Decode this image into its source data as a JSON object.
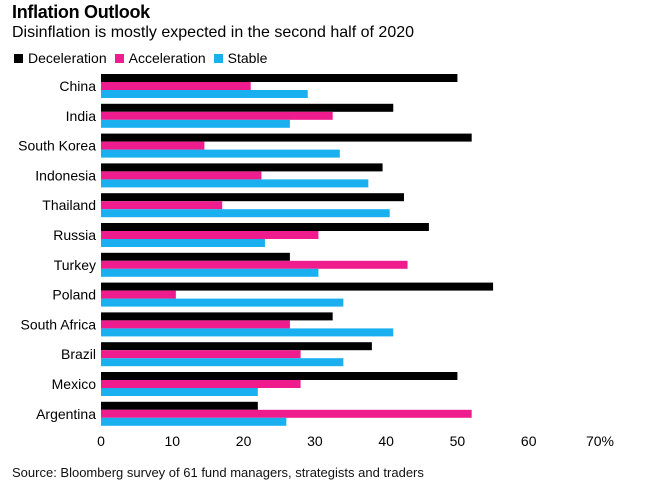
{
  "chart_data": {
    "type": "bar",
    "orientation": "horizontal",
    "title": "Inflation Outlook",
    "subtitle": "Disinflation is mostly expected in the second half of 2020",
    "categories": [
      "China",
      "India",
      "South Korea",
      "Indonesia",
      "Thailand",
      "Russia",
      "Turkey",
      "Poland",
      "South Africa",
      "Brazil",
      "Mexico",
      "Argentina"
    ],
    "series": [
      {
        "name": "Deceleration",
        "color": "#000000",
        "values": [
          50,
          41,
          52,
          39.5,
          42.5,
          46,
          26.5,
          55,
          32.5,
          38,
          50,
          22
        ]
      },
      {
        "name": "Acceleration",
        "color": "#ee1c8c",
        "values": [
          21,
          32.5,
          14.5,
          22.5,
          17,
          30.5,
          43,
          10.5,
          26.5,
          28,
          28,
          52
        ]
      },
      {
        "name": "Stable",
        "color": "#1ab0f0",
        "values": [
          29,
          26.5,
          33.5,
          37.5,
          40.5,
          23,
          30.5,
          34,
          41,
          34,
          22,
          26
        ]
      }
    ],
    "xlim": [
      0,
      70
    ],
    "x_ticks": [
      "0",
      "10",
      "20",
      "30",
      "40",
      "50",
      "60",
      "70%"
    ],
    "grid": false,
    "legend_position": "top-left"
  },
  "source": "Source: Bloomberg survey of 61 fund managers, strategists and traders"
}
